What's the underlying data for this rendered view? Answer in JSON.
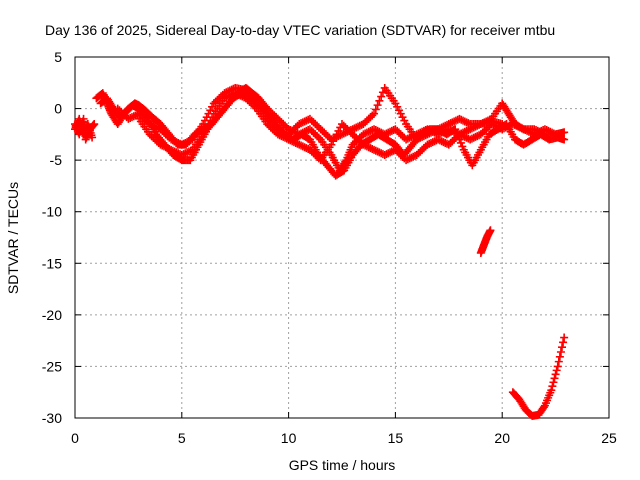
{
  "chart_data": {
    "type": "scatter",
    "title": "Day 136 of 2025, Sidereal Day-to-day VTEC variation (SDTVAR) for receiver mtbu",
    "xlabel": "GPS time / hours",
    "ylabel": "SDTVAR / TECUs",
    "xlim": [
      0,
      25
    ],
    "ylim": [
      -30,
      5
    ],
    "grid": true,
    "xticks": [
      0,
      5,
      10,
      15,
      20,
      25
    ],
    "xtick_labels": [
      "0",
      "5",
      "10",
      "15",
      "20",
      "25"
    ],
    "yticks": [
      -30,
      -25,
      -20,
      -15,
      -10,
      -5,
      0,
      5
    ],
    "ytick_labels": [
      "-30",
      "-25",
      "-20",
      "-15",
      "-10",
      "-5",
      "0",
      "5"
    ],
    "marker": "+",
    "series_color": "#ff0000",
    "series": [
      {
        "name": "track-1",
        "points": [
          [
            0.0,
            -1.5
          ],
          [
            0.2,
            -2.5
          ],
          [
            0.4,
            -1.0
          ],
          [
            0.5,
            -3.0
          ],
          [
            0.7,
            -2.0
          ],
          [
            0.9,
            -1.5
          ]
        ]
      },
      {
        "name": "track-2",
        "points": [
          [
            0.0,
            -2.0
          ],
          [
            0.2,
            -1.0
          ],
          [
            0.4,
            -2.5
          ],
          [
            0.6,
            -1.5
          ],
          [
            0.8,
            -2.8
          ]
        ]
      },
      {
        "name": "track-3",
        "points": [
          [
            1.0,
            1.0
          ],
          [
            1.3,
            1.5
          ],
          [
            1.5,
            0.5
          ],
          [
            1.7,
            -0.5
          ],
          [
            2.0,
            -1.5
          ],
          [
            2.3,
            -0.5
          ],
          [
            2.5,
            0.0
          ],
          [
            2.8,
            0.5
          ],
          [
            3.0,
            0.3
          ],
          [
            3.3,
            -0.2
          ],
          [
            3.6,
            -0.8
          ],
          [
            4.0,
            -1.5
          ],
          [
            4.4,
            -2.5
          ],
          [
            4.8,
            -3.5
          ],
          [
            5.2,
            -3.5
          ],
          [
            5.6,
            -2.5
          ],
          [
            6.0,
            -2.0
          ],
          [
            6.4,
            -1.5
          ],
          [
            6.8,
            -0.5
          ],
          [
            7.2,
            0.5
          ],
          [
            7.6,
            1.5
          ],
          [
            8.0,
            2.0
          ],
          [
            8.3,
            1.5
          ],
          [
            8.6,
            1.0
          ],
          [
            9.0,
            0.0
          ],
          [
            9.5,
            -1.0
          ],
          [
            10.0,
            -2.0
          ],
          [
            10.5,
            -2.5
          ],
          [
            11.0,
            -2.0
          ],
          [
            11.5,
            -3.0
          ],
          [
            12.0,
            -4.5
          ],
          [
            12.4,
            -6.0
          ],
          [
            12.7,
            -5.0
          ],
          [
            13.0,
            -3.5
          ],
          [
            13.5,
            -2.5
          ],
          [
            14.0,
            -2.0
          ],
          [
            14.5,
            -2.5
          ],
          [
            15.0,
            -2.0
          ],
          [
            15.5,
            -3.0
          ],
          [
            16.0,
            -2.5
          ],
          [
            16.5,
            -2.0
          ],
          [
            17.0,
            -2.5
          ],
          [
            17.5,
            -2.0
          ],
          [
            18.0,
            -2.5
          ],
          [
            18.5,
            -3.0
          ],
          [
            19.0,
            -2.5
          ],
          [
            19.5,
            -1.5
          ],
          [
            20.0,
            -2.0
          ],
          [
            20.5,
            -1.5
          ],
          [
            21.0,
            -2.0
          ],
          [
            21.5,
            -2.5
          ],
          [
            22.0,
            -2.0
          ],
          [
            22.5,
            -2.5
          ],
          [
            22.9,
            -2.3
          ]
        ]
      },
      {
        "name": "track-4",
        "points": [
          [
            1.2,
            0.5
          ],
          [
            1.5,
            1.0
          ],
          [
            1.8,
            0.0
          ],
          [
            2.1,
            -0.8
          ],
          [
            2.4,
            -0.3
          ],
          [
            2.7,
            0.3
          ],
          [
            3.0,
            0.0
          ],
          [
            3.4,
            -1.0
          ],
          [
            3.8,
            -2.5
          ],
          [
            4.2,
            -3.5
          ],
          [
            4.6,
            -4.5
          ],
          [
            5.0,
            -5.0
          ],
          [
            5.4,
            -5.0
          ],
          [
            5.8,
            -3.5
          ],
          [
            6.2,
            -2.0
          ],
          [
            6.6,
            -1.0
          ],
          [
            7.0,
            0.0
          ],
          [
            7.4,
            1.0
          ],
          [
            7.8,
            1.5
          ],
          [
            8.2,
            1.0
          ],
          [
            8.6,
            0.5
          ],
          [
            9.0,
            -0.5
          ],
          [
            9.4,
            -1.5
          ],
          [
            9.8,
            -2.5
          ],
          [
            10.2,
            -3.0
          ],
          [
            10.6,
            -2.5
          ],
          [
            11.0,
            -3.0
          ],
          [
            11.4,
            -4.5
          ],
          [
            11.8,
            -5.5
          ],
          [
            12.2,
            -6.5
          ],
          [
            12.6,
            -6.0
          ],
          [
            13.0,
            -4.5
          ],
          [
            13.4,
            -3.5
          ],
          [
            13.8,
            -3.0
          ],
          [
            14.2,
            -2.5
          ],
          [
            14.6,
            -3.0
          ],
          [
            15.0,
            -3.5
          ],
          [
            15.4,
            -4.5
          ],
          [
            15.8,
            -3.5
          ],
          [
            16.2,
            -2.5
          ],
          [
            16.6,
            -2.0
          ],
          [
            17.0,
            -2.0
          ],
          [
            17.4,
            -2.5
          ],
          [
            17.8,
            -2.0
          ],
          [
            18.2,
            -4.0
          ],
          [
            18.6,
            -5.5
          ],
          [
            19.0,
            -4.0
          ],
          [
            19.4,
            -2.5
          ],
          [
            19.8,
            -2.0
          ],
          [
            20.2,
            -1.5
          ],
          [
            20.6,
            -3.0
          ],
          [
            21.0,
            -3.5
          ],
          [
            21.4,
            -3.0
          ],
          [
            21.8,
            -2.5
          ],
          [
            22.2,
            -3.0
          ],
          [
            22.6,
            -2.8
          ],
          [
            22.9,
            -3.0
          ]
        ]
      },
      {
        "name": "track-5",
        "points": [
          [
            2.0,
            0.0
          ],
          [
            2.5,
            -1.0
          ],
          [
            3.0,
            -0.5
          ],
          [
            3.5,
            -1.5
          ],
          [
            4.0,
            -2.0
          ],
          [
            4.5,
            -3.0
          ],
          [
            5.0,
            -3.5
          ],
          [
            5.5,
            -3.0
          ],
          [
            6.0,
            -1.5
          ],
          [
            6.5,
            0.5
          ],
          [
            7.0,
            1.5
          ],
          [
            7.5,
            2.0
          ],
          [
            8.0,
            1.8
          ],
          [
            8.5,
            0.5
          ],
          [
            9.0,
            -1.0
          ],
          [
            9.5,
            -2.0
          ],
          [
            10.0,
            -2.5
          ],
          [
            10.5,
            -1.5
          ],
          [
            11.0,
            -1.0
          ],
          [
            11.5,
            -2.0
          ],
          [
            12.0,
            -3.0
          ],
          [
            12.5,
            -2.5
          ],
          [
            13.0,
            -2.0
          ],
          [
            13.5,
            -1.5
          ],
          [
            14.0,
            -0.5
          ],
          [
            14.5,
            2.0
          ],
          [
            15.0,
            0.5
          ],
          [
            15.5,
            -1.5
          ],
          [
            16.0,
            -3.0
          ],
          [
            16.5,
            -2.5
          ],
          [
            17.0,
            -2.0
          ],
          [
            17.5,
            -1.5
          ],
          [
            18.0,
            -1.0
          ],
          [
            18.5,
            -1.5
          ],
          [
            19.0,
            -1.5
          ],
          [
            19.5,
            -1.0
          ],
          [
            20.0,
            0.5
          ],
          [
            20.3,
            -0.5
          ],
          [
            20.6,
            -1.5
          ],
          [
            21.0,
            -2.0
          ],
          [
            21.5,
            -2.0
          ],
          [
            22.0,
            -2.5
          ],
          [
            22.5,
            -2.5
          ]
        ]
      },
      {
        "name": "track-6",
        "points": [
          [
            3.0,
            -1.0
          ],
          [
            3.5,
            -2.5
          ],
          [
            4.0,
            -3.5
          ],
          [
            4.5,
            -4.0
          ],
          [
            5.0,
            -4.5
          ],
          [
            5.5,
            -4.0
          ],
          [
            6.0,
            -2.5
          ],
          [
            6.5,
            -0.5
          ],
          [
            7.0,
            1.0
          ],
          [
            7.5,
            1.5
          ],
          [
            8.0,
            1.0
          ],
          [
            8.5,
            0.0
          ],
          [
            9.0,
            -1.5
          ],
          [
            9.5,
            -2.5
          ],
          [
            10.0,
            -3.0
          ],
          [
            10.5,
            -3.5
          ],
          [
            11.0,
            -4.0
          ],
          [
            11.5,
            -5.0
          ],
          [
            12.0,
            -3.5
          ],
          [
            12.5,
            -1.5
          ],
          [
            13.0,
            -2.5
          ],
          [
            13.5,
            -3.5
          ],
          [
            14.0,
            -4.0
          ],
          [
            14.5,
            -4.5
          ],
          [
            15.0,
            -4.0
          ],
          [
            15.5,
            -5.0
          ],
          [
            16.0,
            -4.5
          ],
          [
            16.5,
            -3.5
          ],
          [
            17.0,
            -3.0
          ],
          [
            17.5,
            -3.5
          ],
          [
            18.0,
            -2.5
          ],
          [
            18.5,
            -2.0
          ],
          [
            19.0,
            -1.5
          ],
          [
            19.5,
            -1.2
          ],
          [
            20.0,
            -1.5
          ]
        ]
      },
      {
        "name": "track-7",
        "points": [
          [
            19.0,
            -14.0
          ],
          [
            19.15,
            -13.2
          ],
          [
            19.3,
            -12.4
          ],
          [
            19.45,
            -11.8
          ]
        ]
      },
      {
        "name": "track-8",
        "points": [
          [
            20.5,
            -27.5
          ],
          [
            20.8,
            -28.2
          ],
          [
            21.1,
            -29.2
          ],
          [
            21.4,
            -29.8
          ],
          [
            21.7,
            -29.7
          ],
          [
            22.0,
            -28.8
          ],
          [
            22.3,
            -27.3
          ],
          [
            22.6,
            -25.0
          ],
          [
            22.9,
            -22.2
          ]
        ]
      }
    ]
  }
}
